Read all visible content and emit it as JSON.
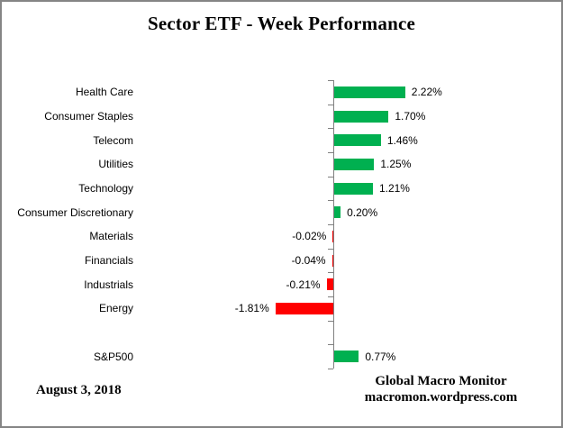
{
  "header": {
    "title": "Sector ETF - Week Performance"
  },
  "chart_data": {
    "type": "bar",
    "orientation": "horizontal",
    "title": "Sector ETF - Week Performance",
    "categories": [
      "Health Care",
      "Consumer Staples",
      "Telecom",
      "Utilities",
      "Technology",
      "Consumer Discretionary",
      "Materials",
      "Financials",
      "Industrials",
      "Energy"
    ],
    "values": [
      2.22,
      1.7,
      1.46,
      1.25,
      1.21,
      0.2,
      -0.02,
      -0.04,
      -0.21,
      -1.81
    ],
    "value_labels": [
      "2.22%",
      "1.70%",
      "1.46%",
      "1.25%",
      "1.21%",
      "0.20%",
      "-0.02%",
      "-0.04%",
      "-0.21%",
      "-1.81%"
    ],
    "benchmark": {
      "category": "S&P500",
      "value": 0.77,
      "value_label": "0.77%"
    },
    "xlabel": "",
    "ylabel": "",
    "xlim": [
      -2.0,
      2.5
    ],
    "grid": false,
    "legend": false,
    "positive_color": "#00B050",
    "negative_color": "#FF0000",
    "axis_color": "#808080"
  },
  "footer": {
    "date": "August 3, 2018",
    "brand_line1": "Global Macro Monitor",
    "brand_line2": "macromon.wordpress.com"
  }
}
